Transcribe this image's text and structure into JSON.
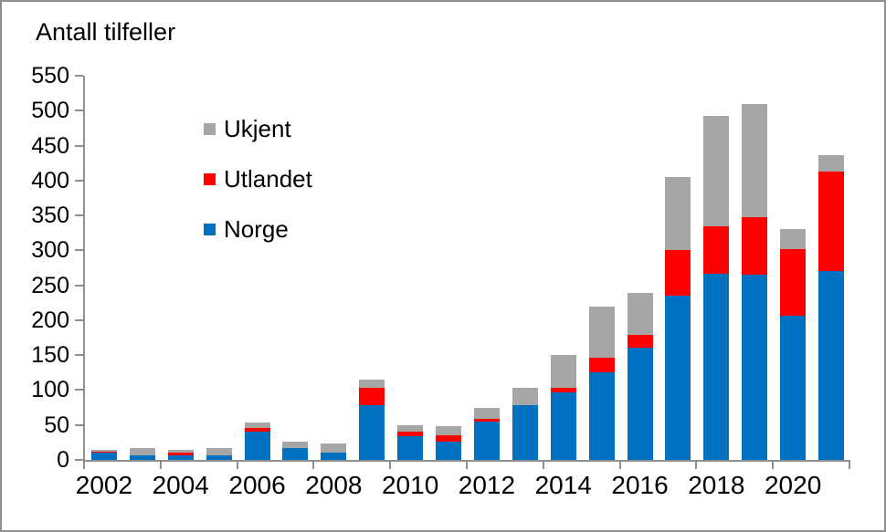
{
  "title": "Antall tilfeller",
  "colors": {
    "norge_blue": "#0070C0",
    "utlandet_red": "#FF0000",
    "ukjent_gray": "#A6A6A6",
    "axis_gray": "#8F8F8F",
    "text_black": "#000000",
    "background": "#FFFFFF"
  },
  "chart_data": {
    "type": "bar",
    "stacked": true,
    "title": "Antall tilfeller",
    "xlabel": "",
    "ylabel": "Antall tilfeller",
    "grid": false,
    "legend_position": "upper-left-inside",
    "ylim": [
      0,
      550
    ],
    "ytick_step": 50,
    "ytick_labels": [
      "0",
      "50",
      "100",
      "150",
      "200",
      "250",
      "300",
      "350",
      "400",
      "450",
      "500",
      "550"
    ],
    "xtick_labels": [
      "2002",
      "2004",
      "2006",
      "2008",
      "2010",
      "2012",
      "2014",
      "2016",
      "2018",
      "2020"
    ],
    "categories": [
      "2002",
      "2003",
      "2004",
      "2005",
      "2006",
      "2007",
      "2008",
      "2009",
      "2010",
      "2011",
      "2012",
      "2013",
      "2014",
      "2015",
      "2016",
      "2017",
      "2018",
      "2019",
      "2020",
      "2021"
    ],
    "series": [
      {
        "name": "Norge",
        "color": "#0070C0",
        "values": [
          10,
          7,
          7,
          7,
          41,
          17,
          11,
          79,
          34,
          26,
          55,
          78,
          97,
          126,
          161,
          235,
          267,
          265,
          206,
          270
        ]
      },
      {
        "name": "Utlandet",
        "color": "#FF0000",
        "values": [
          2,
          0,
          3,
          0,
          5,
          0,
          0,
          24,
          6,
          9,
          4,
          0,
          6,
          20,
          18,
          65,
          67,
          83,
          96,
          143
        ]
      },
      {
        "name": "Ukjent",
        "color": "#A6A6A6",
        "values": [
          2,
          10,
          4,
          10,
          7,
          9,
          13,
          12,
          10,
          13,
          15,
          25,
          47,
          74,
          60,
          105,
          158,
          162,
          28,
          23
        ]
      }
    ],
    "legend": [
      {
        "label": "Ukjent",
        "color": "#A6A6A6"
      },
      {
        "label": "Utlandet",
        "color": "#FF0000"
      },
      {
        "label": "Norge",
        "color": "#0070C0"
      }
    ]
  }
}
